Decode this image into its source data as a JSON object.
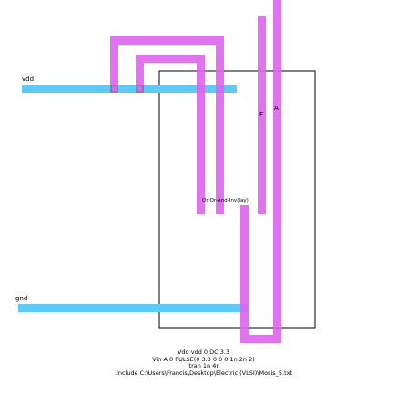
{
  "schematic": {
    "colors": {
      "metal": "#5ecbf5",
      "poly": "#dd66ee",
      "outline": "#000000",
      "background": "#ffffff"
    },
    "labels": {
      "vdd": "vdd",
      "gnd": "gnd",
      "output": "F",
      "input": "A",
      "cell": "Or-Or-And-Inv(lay)"
    },
    "spice_lines": [
      "Vdd vdd 0 DC 3.3",
      "Vin A 0 PULSE(0 3.3 0 0 0 1n 2n 2)",
      ".tran 1n 4n",
      ".include C:\\Users\\Francis\\Desktop\\Electric (VLSI)\\Mosis_5.txt"
    ]
  }
}
